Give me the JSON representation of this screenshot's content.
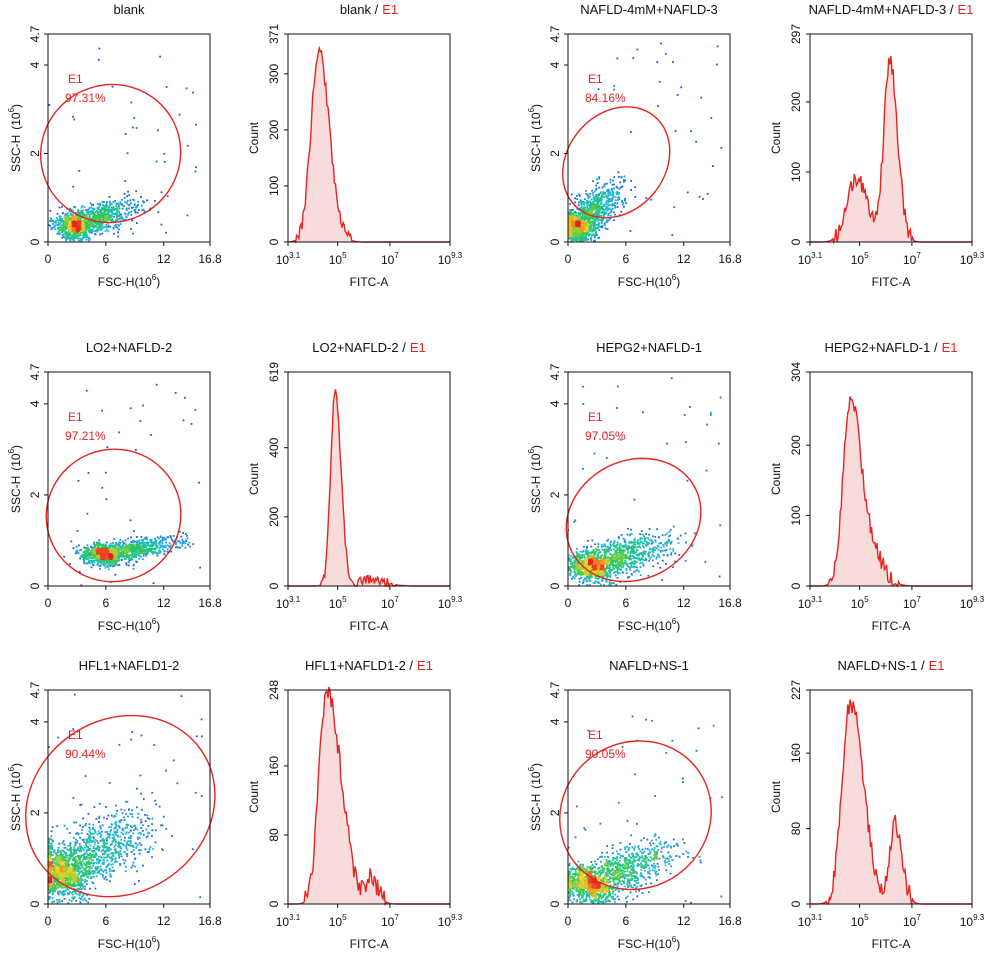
{
  "colors": {
    "gate": "#e8231f",
    "histogram_line": "#e8231f",
    "histogram_fill": "#f8dcdc",
    "density_low": "#1f2ad8",
    "density_mid": "#18b6e0",
    "density_high": "#f0d21c",
    "density_peak": "#e8231f"
  },
  "chart_data": [
    {
      "type": "scatter",
      "title": "blank",
      "xlabel": "FSC-H",
      "xlabel_unit": "(10",
      "xlabel_exp": "6",
      "ylabel": "SSC-H",
      "ylabel_unit": "(10",
      "ylabel_exp": "6",
      "xlim": [
        0,
        16.8
      ],
      "ylim": [
        0,
        4.7
      ],
      "xticks": [
        "0",
        "6",
        "12",
        "16.8"
      ],
      "yticks": [
        "0",
        "2",
        "4",
        "4.7"
      ],
      "gate": {
        "name": "E1",
        "percent": "97.31%",
        "center": [
          6.5,
          2.0
        ],
        "rx": 7.3,
        "ry": 1.55,
        "angle_deg": 28
      },
      "population": {
        "center": [
          3.3,
          0.42
        ],
        "spread": [
          1.8,
          0.5
        ],
        "n": 1300
      }
    },
    {
      "type": "histogram",
      "title": "blank /",
      "title_gate": "E1",
      "xlabel": "FITC-A",
      "ylabel": "Count",
      "x_scale": "log",
      "xlim_log": [
        3.1,
        9.3
      ],
      "xticks": [
        {
          "base": "10",
          "exp": "3.1",
          "value": 3.1
        },
        {
          "base": "10",
          "exp": "5",
          "value": 5
        },
        {
          "base": "10",
          "exp": "7",
          "value": 7
        },
        {
          "base": "10",
          "exp": "9.3",
          "value": 9.3
        }
      ],
      "ymax": 371,
      "yticks": [
        0,
        100,
        200,
        300,
        371
      ],
      "peaks": [
        {
          "x": 4.28,
          "height": 340,
          "width": 0.3
        }
      ],
      "noise": 12
    },
    {
      "type": "scatter",
      "title": "NAFLD-4mM+NAFLD-3",
      "xlabel": "FSC-H",
      "xlabel_unit": "(10",
      "xlabel_exp": "6",
      "ylabel": "SSC-H",
      "ylabel_unit": "(10",
      "ylabel_exp": "6",
      "xlim": [
        0,
        16.8
      ],
      "ylim": [
        0,
        4.7
      ],
      "xticks": [
        "0",
        "6",
        "12",
        "16.8"
      ],
      "yticks": [
        "0",
        "2",
        "4",
        "4.7"
      ],
      "gate": {
        "name": "E1",
        "percent": "84.16%",
        "center": [
          5.0,
          1.8
        ],
        "rx": 6.2,
        "ry": 1.1,
        "angle_deg": 50
      },
      "population": {
        "center": [
          1.5,
          0.45
        ],
        "spread": [
          1.6,
          0.6
        ],
        "n": 1300
      }
    },
    {
      "type": "histogram",
      "title": "NAFLD-4mM+NAFLD-3 /",
      "title_gate": "E1",
      "xlabel": "FITC-A",
      "ylabel": "Count",
      "x_scale": "log",
      "xlim_log": [
        3.1,
        9.3
      ],
      "xticks": [
        {
          "base": "10",
          "exp": "3.1",
          "value": 3.1
        },
        {
          "base": "10",
          "exp": "5",
          "value": 5
        },
        {
          "base": "10",
          "exp": "7",
          "value": 7
        },
        {
          "base": "10",
          "exp": "9.3",
          "value": 9.3
        }
      ],
      "ymax": 297,
      "yticks": [
        0,
        100,
        200,
        297
      ],
      "peaks": [
        {
          "x": 4.85,
          "height": 90,
          "width": 0.35
        },
        {
          "x": 6.15,
          "height": 260,
          "width": 0.22
        }
      ],
      "noise": 12
    },
    {
      "type": "scatter",
      "title": "LO2+NAFLD-2",
      "xlabel": "FSC-H",
      "xlabel_unit": "(10",
      "xlabel_exp": "6",
      "ylabel": "SSC-H",
      "ylabel_unit": "(10",
      "ylabel_exp": "6",
      "xlim": [
        0,
        16.8
      ],
      "ylim": [
        0,
        4.7
      ],
      "xticks": [
        "0",
        "6",
        "12",
        "16.8"
      ],
      "yticks": [
        "0",
        "2",
        "4",
        "4.7"
      ],
      "gate": {
        "name": "E1",
        "percent": "97.21%",
        "center": [
          6.8,
          1.55
        ],
        "rx": 7.0,
        "ry": 1.45,
        "angle_deg": 22
      },
      "population": {
        "center": [
          6.5,
          0.72
        ],
        "spread": [
          2.0,
          0.35
        ],
        "n": 1300
      }
    },
    {
      "type": "histogram",
      "title": "LO2+NAFLD-2 /",
      "title_gate": "E1",
      "xlabel": "FITC-A",
      "ylabel": "Count",
      "x_scale": "log",
      "xlim_log": [
        3.1,
        9.3
      ],
      "xticks": [
        {
          "base": "10",
          "exp": "3.1",
          "value": 3.1
        },
        {
          "base": "10",
          "exp": "5",
          "value": 5
        },
        {
          "base": "10",
          "exp": "7",
          "value": 7
        },
        {
          "base": "10",
          "exp": "9.3",
          "value": 9.3
        }
      ],
      "ymax": 619,
      "yticks": [
        0,
        200,
        400,
        619
      ],
      "peaks": [
        {
          "x": 4.9,
          "height": 560,
          "width": 0.17
        },
        {
          "x": 6.2,
          "height": 20,
          "width": 0.4
        }
      ],
      "noise": 14
    },
    {
      "type": "scatter",
      "title": "HEPG2+NAFLD-1",
      "xlabel": "FSC-H",
      "xlabel_unit": "(10",
      "xlabel_exp": "6",
      "ylabel": "SSC-H",
      "ylabel_unit": "(10",
      "ylabel_exp": "6",
      "xlim": [
        0,
        16.8
      ],
      "ylim": [
        0,
        4.7
      ],
      "xticks": [
        "0",
        "6",
        "12",
        "16.8"
      ],
      "yticks": [
        "0",
        "2",
        "4",
        "4.7"
      ],
      "gate": {
        "name": "E1",
        "percent": "97.05%",
        "center": [
          6.8,
          1.45
        ],
        "rx": 7.2,
        "ry": 1.3,
        "angle_deg": 28
      },
      "population": {
        "center": [
          3.3,
          0.5
        ],
        "spread": [
          2.3,
          0.6
        ],
        "n": 1300
      }
    },
    {
      "type": "histogram",
      "title": "HEPG2+NAFLD-1 /",
      "title_gate": "E1",
      "xlabel": "FITC-A",
      "ylabel": "Count",
      "x_scale": "log",
      "xlim_log": [
        3.1,
        9.3
      ],
      "xticks": [
        {
          "base": "10",
          "exp": "3.1",
          "value": 3.1
        },
        {
          "base": "10",
          "exp": "5",
          "value": 5
        },
        {
          "base": "10",
          "exp": "7",
          "value": 7
        },
        {
          "base": "10",
          "exp": "9.3",
          "value": 9.3
        }
      ],
      "ymax": 304,
      "yticks": [
        0,
        100,
        200,
        304
      ],
      "peaks": [
        {
          "x": 4.65,
          "height": 265,
          "width": 0.28
        },
        {
          "x": 5.4,
          "height": 50,
          "width": 0.35
        }
      ],
      "noise": 12
    },
    {
      "type": "scatter",
      "title": "HFL1+NAFLD1-2",
      "xlabel": "FSC-H",
      "xlabel_unit": "(10",
      "xlabel_exp": "6",
      "ylabel": "SSC-H",
      "ylabel_unit": "(10",
      "ylabel_exp": "6",
      "xlim": [
        0,
        16.8
      ],
      "ylim": [
        0,
        4.7
      ],
      "xticks": [
        "0",
        "6",
        "12",
        "16.8"
      ],
      "yticks": [
        "0",
        "2",
        "4",
        "4.7"
      ],
      "gate": {
        "name": "E1",
        "percent": "90.44%",
        "center": [
          7.5,
          2.15
        ],
        "rx": 10.2,
        "ry": 1.9,
        "angle_deg": 35
      },
      "population": {
        "center": [
          2.4,
          0.8
        ],
        "spread": [
          2.6,
          1.0
        ],
        "n": 1700
      }
    },
    {
      "type": "histogram",
      "title": "HFL1+NAFLD1-2 /",
      "title_gate": "E1",
      "xlabel": "FITC-A",
      "ylabel": "Count",
      "x_scale": "log",
      "xlim_log": [
        3.1,
        9.3
      ],
      "xticks": [
        {
          "base": "10",
          "exp": "3.1",
          "value": 3.1
        },
        {
          "base": "10",
          "exp": "5",
          "value": 5
        },
        {
          "base": "10",
          "exp": "7",
          "value": 7
        },
        {
          "base": "10",
          "exp": "9.3",
          "value": 9.3
        }
      ],
      "ymax": 248,
      "yticks": [
        0,
        80,
        160,
        248
      ],
      "peaks": [
        {
          "x": 4.5,
          "height": 215,
          "width": 0.26
        },
        {
          "x": 5.05,
          "height": 110,
          "width": 0.3
        },
        {
          "x": 6.25,
          "height": 28,
          "width": 0.2
        }
      ],
      "noise": 12
    },
    {
      "type": "scatter",
      "title": "NAFLD+NS-1",
      "xlabel": "FSC-H",
      "xlabel_unit": "(10",
      "xlabel_exp": "6",
      "ylabel": "SSC-H",
      "ylabel_unit": "(10",
      "ylabel_exp": "6",
      "xlim": [
        0,
        16.8
      ],
      "ylim": [
        0,
        4.7
      ],
      "xticks": [
        "0",
        "6",
        "12",
        "16.8"
      ],
      "yticks": [
        "0",
        "2",
        "4",
        "4.7"
      ],
      "gate": {
        "name": "E1",
        "percent": "90.05%",
        "center": [
          7.0,
          1.95
        ],
        "rx": 8.0,
        "ry": 1.6,
        "angle_deg": 35
      },
      "population": {
        "center": [
          3.2,
          0.5
        ],
        "spread": [
          2.5,
          0.7
        ],
        "n": 1400
      }
    },
    {
      "type": "histogram",
      "title": "NAFLD+NS-1 /",
      "title_gate": "E1",
      "xlabel": "FITC-A",
      "ylabel": "Count",
      "x_scale": "log",
      "xlim_log": [
        3.1,
        9.3
      ],
      "xticks": [
        {
          "base": "10",
          "exp": "3.1",
          "value": 3.1
        },
        {
          "base": "10",
          "exp": "5",
          "value": 5
        },
        {
          "base": "10",
          "exp": "7",
          "value": 7
        },
        {
          "base": "10",
          "exp": "9.3",
          "value": 9.3
        }
      ],
      "ymax": 227,
      "yticks": [
        0,
        80,
        160,
        227
      ],
      "peaks": [
        {
          "x": 4.6,
          "height": 195,
          "width": 0.3
        },
        {
          "x": 5.1,
          "height": 55,
          "width": 0.3
        },
        {
          "x": 6.35,
          "height": 85,
          "width": 0.2
        }
      ],
      "noise": 10
    }
  ]
}
